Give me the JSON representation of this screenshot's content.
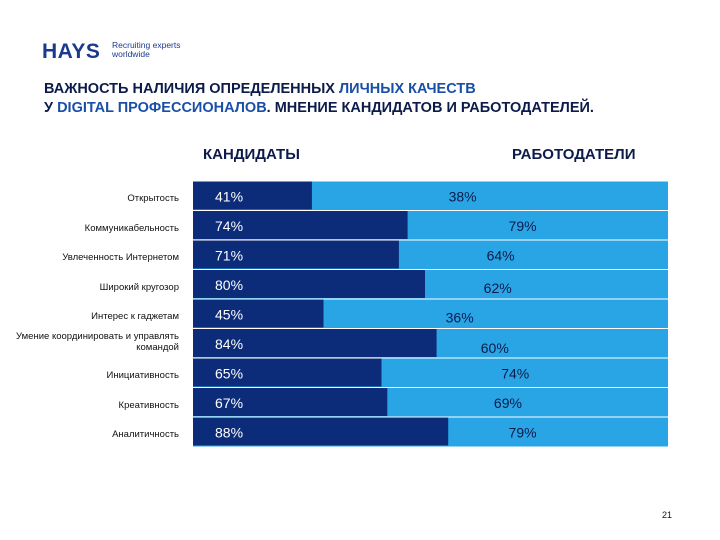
{
  "logo": {
    "word": "HAYS",
    "tagline_line1": "Recruiting experts",
    "tagline_line2": "worldwide"
  },
  "title": {
    "part1": "ВАЖНОСТЬ НАЛИЧИЯ ОПРЕДЕЛЕННЫХ ",
    "part2": "ЛИЧНЫХ КАЧЕСТВ",
    "part3": "У ",
    "part4": "DIGITAL ПРОФЕССИОНАЛОВ",
    "part5": ". МНЕНИЕ КАНДИДАТОВ И РАБОТОДАТЕЛЕЙ."
  },
  "colors": {
    "candidates": "#0c2c7a",
    "employers": "#29a5e5",
    "text": "#0d1b4b"
  },
  "chart_data": {
    "type": "bar",
    "title": "ВАЖНОСТЬ НАЛИЧИЯ ОПРЕДЕЛЕННЫХ ЛИЧНЫХ КАЧЕСТВ У DIGITAL ПРОФЕССИОНАЛОВ. МНЕНИЕ КАНДИДАТОВ И РАБОТОДАТЕЛЕЙ.",
    "categories": [
      "Открытость",
      "Коммуникабельность",
      "Увлеченность Интернетом",
      "Широкий кругозор",
      "Интерес к гаджетам",
      "Умение координировать и управлять командой",
      "Инициативность",
      "Креативность",
      "Аналитичность"
    ],
    "series": [
      {
        "name": "КАНДИДАТЫ",
        "values": [
          41,
          74,
          71,
          80,
          45,
          84,
          65,
          67,
          88
        ],
        "labels": [
          "41%",
          "74%",
          "71%",
          "80%",
          "45%",
          "84%",
          "65%",
          "67%",
          "88%"
        ]
      },
      {
        "name": "РАБОТОДАТЕЛИ",
        "values": [
          38,
          79,
          64,
          62,
          36,
          60,
          74,
          69,
          79
        ],
        "labels": [
          "38%",
          "79%",
          "64%",
          "62%",
          "36%",
          "60%",
          "74%",
          "69%",
          "79%"
        ]
      }
    ],
    "xlabel": "",
    "ylabel": ""
  },
  "page_number": "21"
}
